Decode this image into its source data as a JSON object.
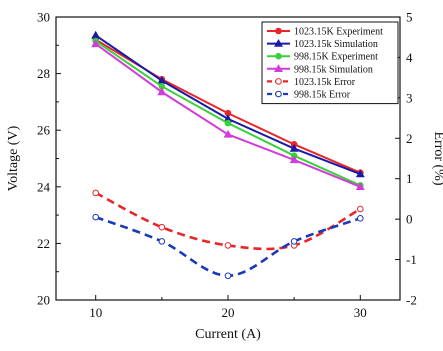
{
  "chart_data": {
    "type": "line",
    "xlabel": "Current (A)",
    "ylabel": "Voltage (V)",
    "y2label": "Error (%)",
    "xlim": [
      7,
      33
    ],
    "ylim": [
      20,
      30
    ],
    "y2lim": [
      -2,
      5
    ],
    "xticks": [
      "10",
      "20",
      "30"
    ],
    "yticks": [
      "20",
      "22",
      "24",
      "26",
      "28",
      "30"
    ],
    "y2ticks": [
      "-2",
      "-1",
      "0",
      "1",
      "2",
      "3",
      "4",
      "5"
    ],
    "legend_position": "top-right",
    "x": [
      10,
      15,
      20,
      25,
      30
    ],
    "series": [
      {
        "name": "1023.15K Experiment",
        "axis": "left",
        "color": "#e8262a",
        "style": "solid",
        "marker": "circle",
        "filled": true,
        "values": [
          29.2,
          27.8,
          26.6,
          25.5,
          24.5
        ]
      },
      {
        "name": "1023.15k Simulation",
        "axis": "left",
        "color": "#1a1aa8",
        "style": "solid",
        "marker": "triangle",
        "filled": true,
        "values": [
          29.35,
          27.75,
          26.4,
          25.35,
          24.45
        ]
      },
      {
        "name": "998.15K Experiment",
        "axis": "left",
        "color": "#39d039",
        "style": "solid",
        "marker": "circle",
        "filled": true,
        "values": [
          29.15,
          27.55,
          26.25,
          25.1,
          24.05
        ]
      },
      {
        "name": "998.15k Simulation",
        "axis": "left",
        "color": "#d23cd8",
        "style": "solid",
        "marker": "triangle",
        "filled": true,
        "values": [
          29.05,
          27.35,
          25.85,
          24.95,
          24.0
        ]
      },
      {
        "name": "1023.15k Error",
        "axis": "right",
        "color": "#e8262a",
        "style": "dashed",
        "marker": "circle",
        "filled": false,
        "values": [
          0.65,
          -0.2,
          -0.65,
          -0.65,
          0.25
        ]
      },
      {
        "name": "998.15k Error",
        "axis": "right",
        "color": "#1a3ab8",
        "style": "dashed",
        "marker": "circle",
        "filled": false,
        "values": [
          0.05,
          -0.55,
          -1.4,
          -0.55,
          0.02
        ]
      }
    ]
  }
}
